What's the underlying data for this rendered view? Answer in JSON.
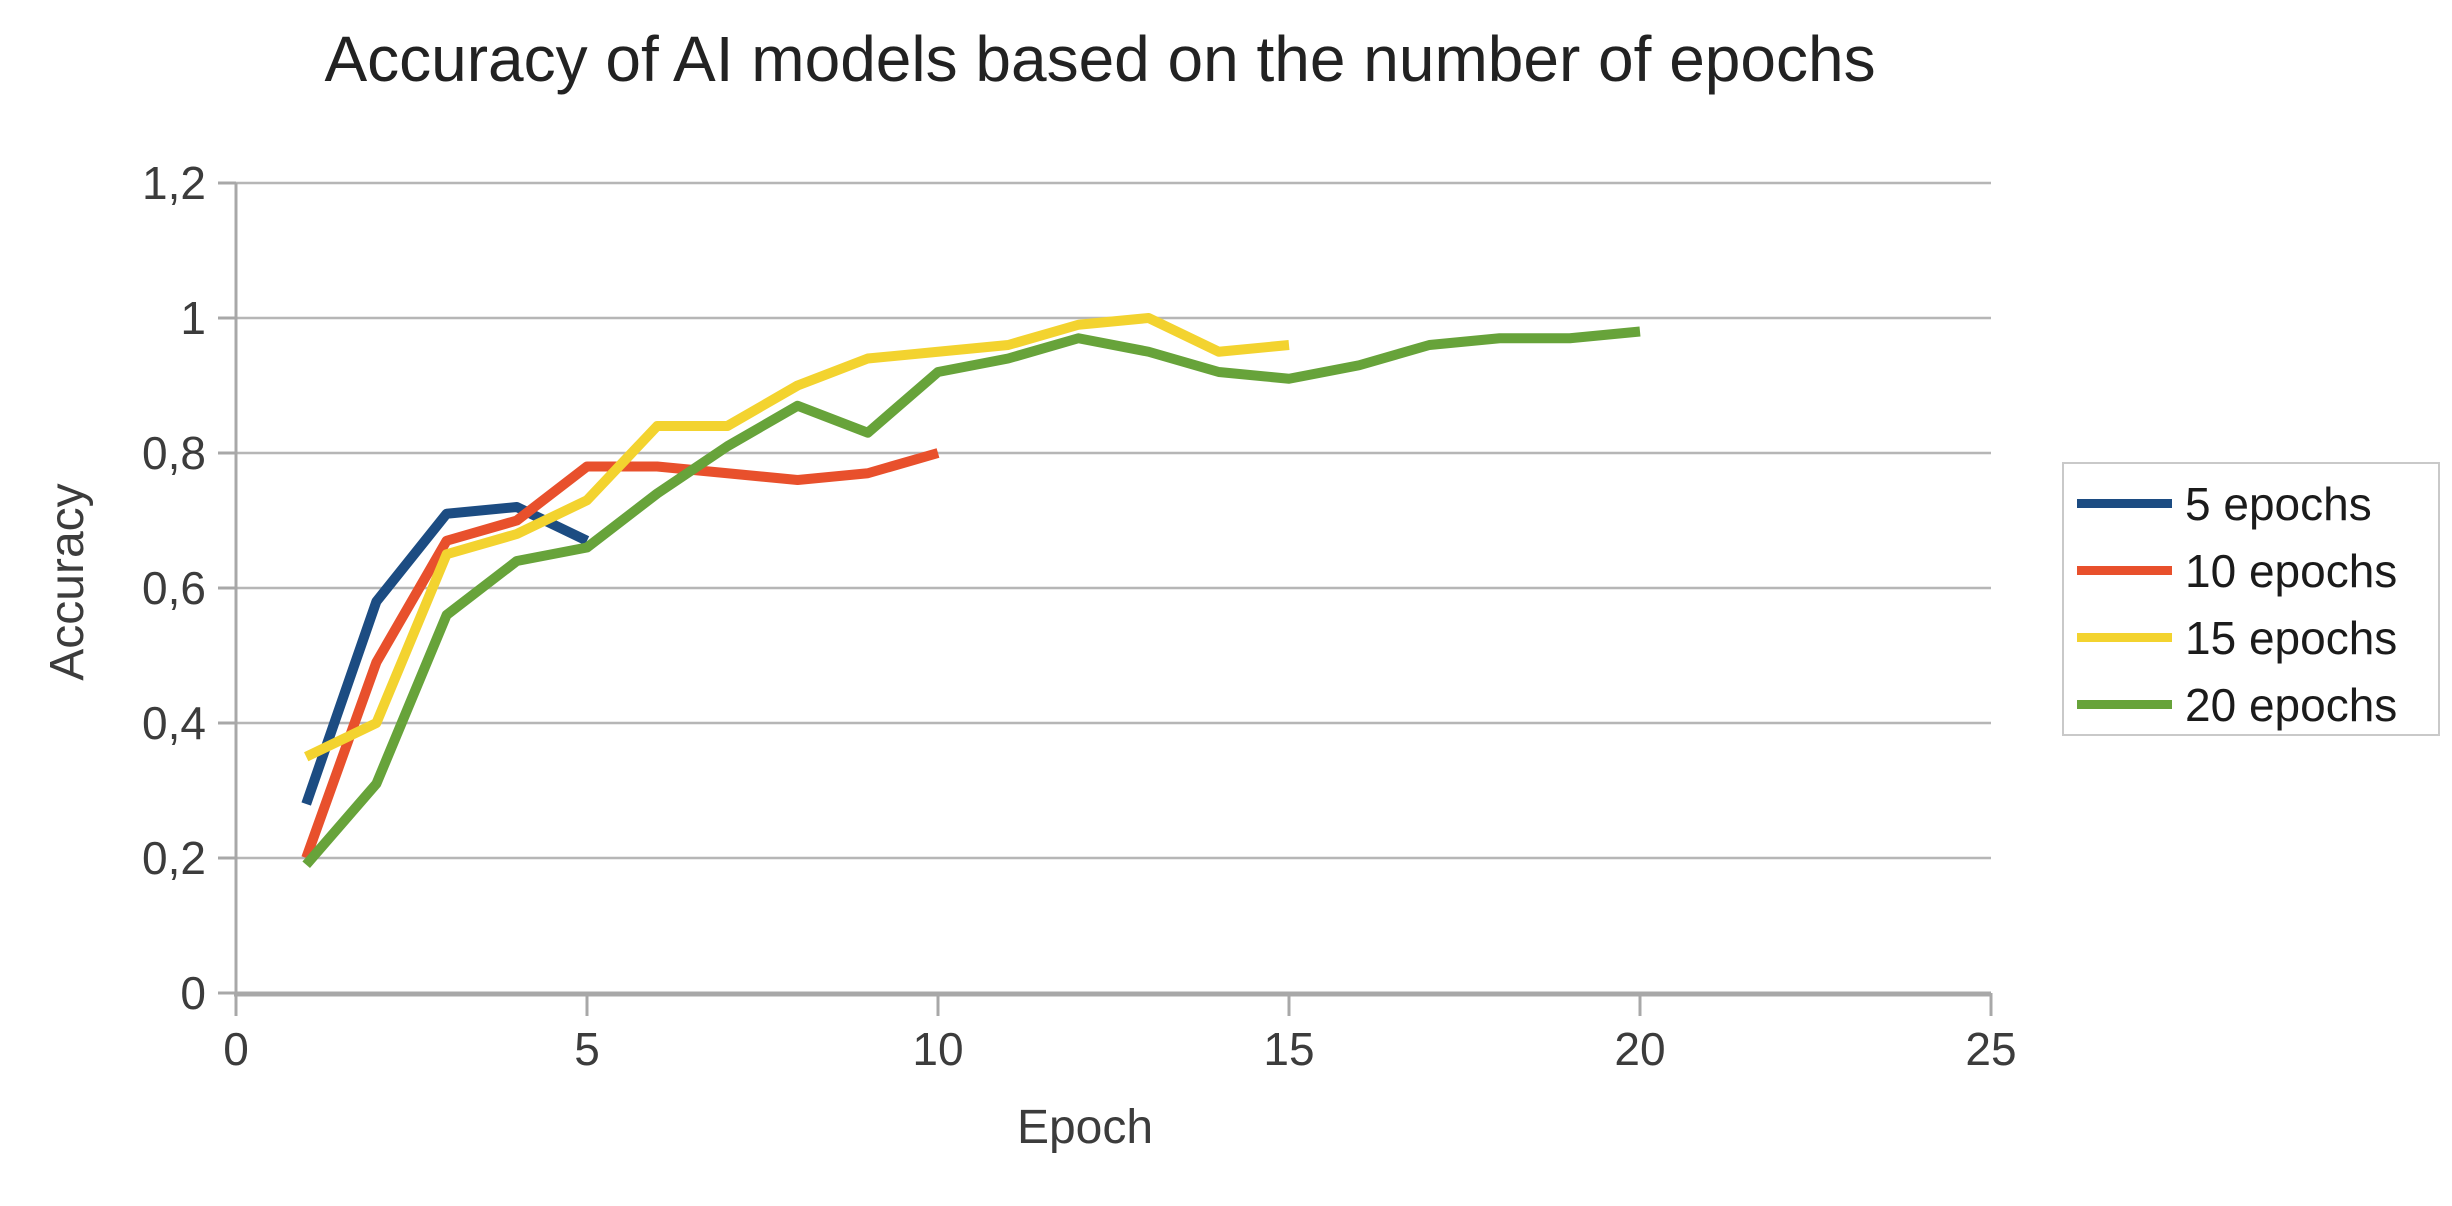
{
  "title": "Accuracy of AI models based on the number of epochs",
  "appearance": {
    "background": "#ffffff",
    "grid_color": "#b6b6b6",
    "axis_color": "#a8a8a8",
    "tick_text_color": "#3c3c3c",
    "title_color": "#222222",
    "legend_border_color": "#c9c9c9",
    "legend_text_color": "#1b1b1b"
  },
  "chart_data": {
    "type": "line",
    "title": "Accuracy of AI models based on the number of epochs",
    "xlabel": "Epoch",
    "ylabel": "Accuracy",
    "xlim": [
      0,
      25
    ],
    "ylim": [
      0,
      1.2
    ],
    "grid": true,
    "legend_position": "right",
    "x_ticks": [
      {
        "value": 0,
        "label": "0"
      },
      {
        "value": 5,
        "label": "5"
      },
      {
        "value": 10,
        "label": "10"
      },
      {
        "value": 15,
        "label": "15"
      },
      {
        "value": 20,
        "label": "20"
      },
      {
        "value": 25,
        "label": "25"
      }
    ],
    "y_ticks": [
      {
        "value": 0,
        "label": "0"
      },
      {
        "value": 0.2,
        "label": "0,2"
      },
      {
        "value": 0.4,
        "label": "0,4"
      },
      {
        "value": 0.6,
        "label": "0,6"
      },
      {
        "value": 0.8,
        "label": "0,8"
      },
      {
        "value": 1,
        "label": "1"
      },
      {
        "value": 1.2,
        "label": "1,2"
      }
    ],
    "series": [
      {
        "name": "5 epochs",
        "color": "#1c4c82",
        "x": [
          1,
          2,
          3,
          4,
          5
        ],
        "values": [
          0.28,
          0.58,
          0.71,
          0.72,
          0.67
        ]
      },
      {
        "name": "10 epochs",
        "color": "#e8502c",
        "x": [
          1,
          2,
          3,
          4,
          5,
          6,
          7,
          8,
          9,
          10
        ],
        "values": [
          0.2,
          0.49,
          0.67,
          0.7,
          0.78,
          0.78,
          0.77,
          0.76,
          0.77,
          0.8
        ]
      },
      {
        "name": "15 epochs",
        "color": "#f3d32f",
        "x": [
          1,
          2,
          3,
          4,
          5,
          6,
          7,
          8,
          9,
          10,
          11,
          12,
          13,
          14,
          15
        ],
        "values": [
          0.35,
          0.4,
          0.65,
          0.68,
          0.73,
          0.84,
          0.84,
          0.9,
          0.94,
          0.95,
          0.96,
          0.99,
          1.0,
          0.95,
          0.96
        ]
      },
      {
        "name": "20 epochs",
        "color": "#67a33a",
        "x": [
          1,
          2,
          3,
          4,
          5,
          6,
          7,
          8,
          9,
          10,
          11,
          12,
          13,
          14,
          15,
          16,
          17,
          18,
          19,
          20
        ],
        "values": [
          0.19,
          0.31,
          0.56,
          0.64,
          0.66,
          0.74,
          0.81,
          0.87,
          0.83,
          0.92,
          0.94,
          0.97,
          0.95,
          0.92,
          0.91,
          0.93,
          0.96,
          0.97,
          0.97,
          0.98
        ]
      }
    ]
  }
}
